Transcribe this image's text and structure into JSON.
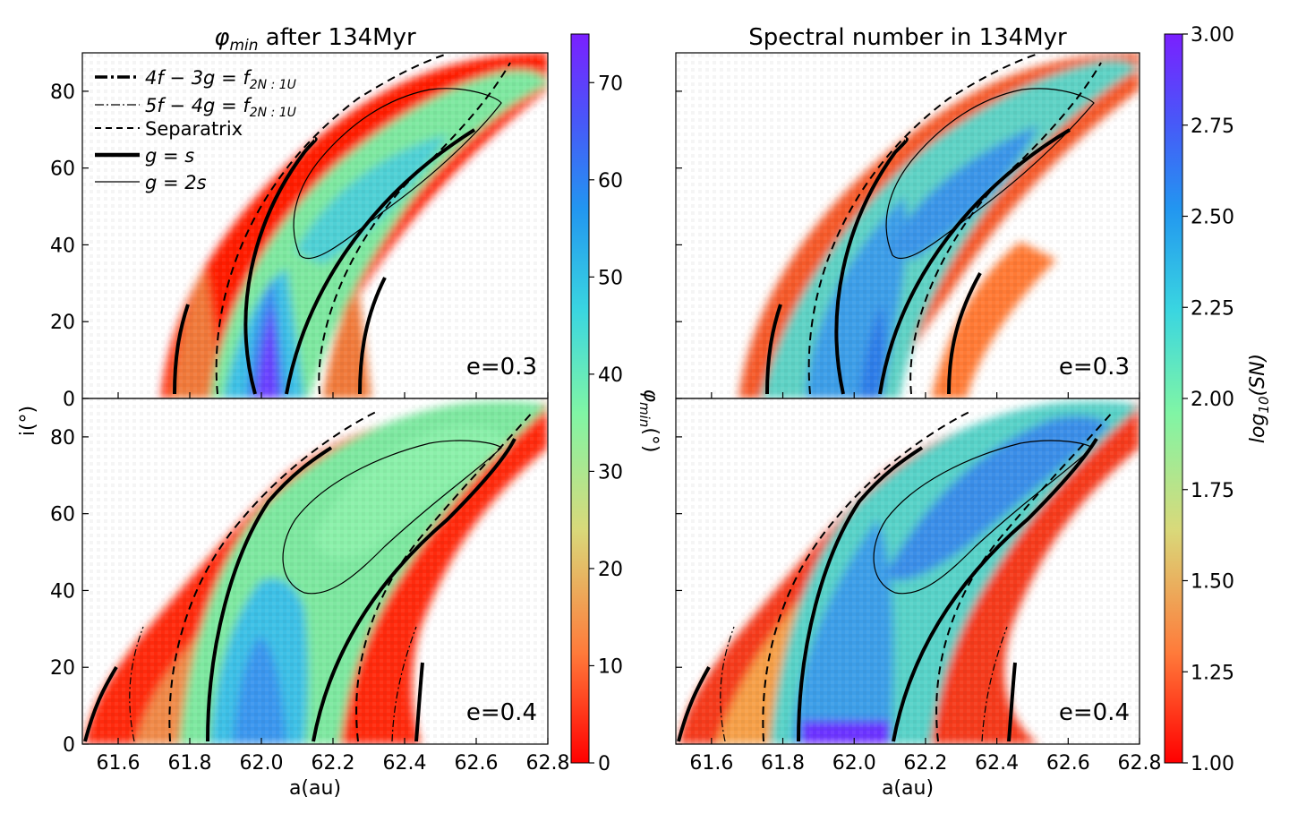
{
  "chart_data": [
    {
      "type": "heatmap",
      "panel": "top-left",
      "title": "φmin after 134Myr",
      "xlabel": "",
      "ylabel": "i(°)",
      "xlim": [
        61.5,
        62.8
      ],
      "ylim": [
        0,
        90
      ],
      "yticks": [
        0,
        20,
        40,
        60,
        80
      ],
      "annotation": "e=0.3",
      "legend": {
        "placement": "top-left",
        "entries": [
          {
            "label": "4f − 3g = f2N:1U",
            "style": "dash-dot-thick"
          },
          {
            "label": "5f − 4g = f2N:1U",
            "style": "dash-dot-thin"
          },
          {
            "label": "Separatrix",
            "style": "dashed"
          },
          {
            "label": "g = s",
            "style": "thick"
          },
          {
            "label": "g = 2s",
            "style": "thin"
          }
        ]
      }
    },
    {
      "type": "heatmap",
      "panel": "bottom-left",
      "xlabel": "a(au)",
      "ylabel": "",
      "xlim": [
        61.5,
        62.8
      ],
      "ylim": [
        0,
        90
      ],
      "xticks": [
        "61.6",
        "61.8",
        "62.0",
        "62.2",
        "62.4",
        "62.6",
        "62.8"
      ],
      "yticks": [
        0,
        20,
        40,
        60,
        80
      ],
      "annotation": "e=0.4"
    },
    {
      "type": "heatmap",
      "panel": "top-right",
      "title": "Spectral number in 134Myr",
      "xlim": [
        61.5,
        62.8
      ],
      "ylim": [
        0,
        90
      ],
      "annotation": "e=0.3"
    },
    {
      "type": "heatmap",
      "panel": "bottom-right",
      "xlabel": "a(au)",
      "xlim": [
        61.5,
        62.8
      ],
      "ylim": [
        0,
        90
      ],
      "xticks": [
        "61.6",
        "61.8",
        "62.0",
        "62.2",
        "62.4",
        "62.6",
        "62.8"
      ],
      "annotation": "e=0.4"
    }
  ],
  "colorbars": {
    "left": {
      "label": "φmin(°)",
      "range": [
        0,
        75
      ],
      "ticks": [
        "0",
        "10",
        "20",
        "30",
        "40",
        "50",
        "60",
        "70"
      ],
      "colormap": "rainbow"
    },
    "right": {
      "label": "log10(SN)",
      "range": [
        1.0,
        3.0
      ],
      "ticks": [
        "1.00",
        "1.25",
        "1.50",
        "1.75",
        "2.00",
        "2.25",
        "2.50",
        "2.75",
        "3.00"
      ],
      "colormap": "rainbow"
    }
  },
  "text": {
    "title_left_sym": "φ",
    "title_left_sub": "min",
    "title_left_rest": " after 134Myr",
    "title_right": "Spectral number in 134Myr",
    "ylabel": "i(°)",
    "xlabel": "a(au)",
    "panel_top": "e=0.3",
    "panel_bottom": "e=0.4",
    "cbar_left_sym": "φ",
    "cbar_left_sub": "min",
    "cbar_left_rest": "(°)",
    "cbar_right_main": "log",
    "cbar_right_sub": "10",
    "cbar_right_rest": "(SN)"
  },
  "legend": [
    {
      "pre": "4f − 3g = f",
      "sub": "2N : 1U"
    },
    {
      "pre": "5f − 4g = f",
      "sub": "2N : 1U"
    },
    {
      "pre": "Separatrix",
      "sub": ""
    },
    {
      "pre": "g = s",
      "sub": ""
    },
    {
      "pre": "g = 2s",
      "sub": ""
    }
  ],
  "colors": {
    "red": "#ff0000",
    "orange": "#ff8040",
    "green": "#80f0a0",
    "cyan": "#40d0e0",
    "blue": "#2080f0",
    "violet": "#7020ff"
  }
}
